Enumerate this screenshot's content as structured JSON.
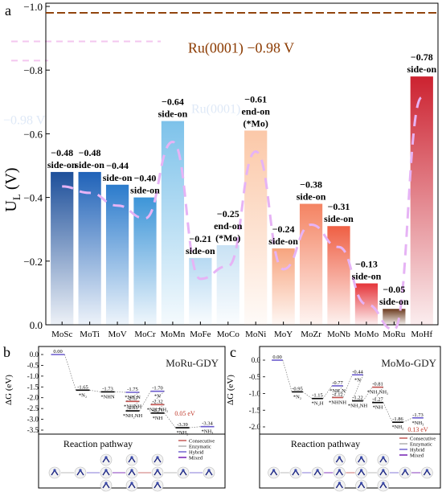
{
  "chart_data": [
    {
      "panel_label": "a",
      "type": "bar",
      "ylabel": "U",
      "ylabel_sub": "L",
      "ylabel_unit": " (V)",
      "ylim": [
        0,
        -1.0
      ],
      "yticks": [
        0.0,
        -0.2,
        -0.4,
        -0.6,
        -0.8,
        -1.0
      ],
      "ytick_labels": [
        "0.0",
        "−0.2",
        "−0.4",
        "−0.6",
        "−0.8",
        "−1.0"
      ],
      "reference": {
        "label": "Ru(0001)  −0.98 V",
        "value": -0.98,
        "color": "#8b3a00"
      },
      "ghost_texts": [
        "Ru(0001)",
        "−0.98 V"
      ],
      "categories": [
        "MoSc",
        "MoTi",
        "MoV",
        "MoCr",
        "MoMn",
        "MoFe",
        "MoCo",
        "MoNi",
        "MoY",
        "MoZr",
        "MoNb",
        "MoMo",
        "MoRu",
        "MoHf"
      ],
      "values": [
        -0.48,
        -0.48,
        -0.44,
        -0.4,
        -0.64,
        -0.21,
        -0.25,
        -0.61,
        -0.24,
        -0.38,
        -0.31,
        -0.13,
        -0.05,
        -0.78
      ],
      "value_labels": [
        "−0.48",
        "−0.48",
        "−0.44",
        "−0.40",
        "−0.64",
        "−0.21",
        "−0.25",
        "−0.61",
        "−0.24",
        "−0.38",
        "−0.31",
        "−0.13",
        "−0.05",
        "−0.78"
      ],
      "modes": [
        "side-on",
        "side-on",
        "side-on",
        "side-on",
        "side-on",
        "side-on",
        "end-on",
        "end-on",
        "side-on",
        "side-on",
        "side-on",
        "side-on",
        "side-on",
        "side-on"
      ],
      "mode_notes": [
        "",
        "",
        "",
        "",
        "",
        "",
        "(*Mo)",
        "(*Mo)",
        "",
        "",
        "",
        "",
        "",
        ""
      ],
      "bar_colors": [
        "#1d4f9a",
        "#1f62b8",
        "#2b7bcc",
        "#3d95d8",
        "#7dc2ea",
        "#b6d9f2",
        "#c9e2f4",
        "#fbc8a8",
        "#f7a47e",
        "#f48362",
        "#ef5f44",
        "#e5343a",
        "#6b3a1e",
        "#cc2230"
      ]
    },
    {
      "panel_label": "b",
      "type": "line",
      "title": "MoRu-GDY",
      "ylabel": "ΔG (eV)",
      "ylim": [
        0.0,
        -3.5
      ],
      "yticks": [
        0.0,
        -0.5,
        -1.0,
        -1.5,
        -2.0,
        -2.5,
        -3.0,
        -3.5
      ],
      "ytick_labels": [
        "0.0",
        "-0.5",
        "-1.0",
        "-1.5",
        "-2.0",
        "-2.5",
        "-3.0",
        "-3.5"
      ],
      "levels": [
        {
          "x": 0,
          "y": 0.0,
          "value_label": "0.00",
          "species": "",
          "color": "#6a5acd"
        },
        {
          "x": 1,
          "y": -1.65,
          "value_label": "-1.65",
          "species": "*N₂",
          "color": "#000000"
        },
        {
          "x": 2,
          "y": -1.73,
          "value_label": "-1.73",
          "species": "*NHN",
          "color": "#000000"
        },
        {
          "x": 3,
          "y": -1.75,
          "value_label": "-1.75",
          "species": "*NH₂N",
          "color": "#6a5acd"
        },
        {
          "x": 3,
          "y": -2.17,
          "value_label": "-2.17",
          "species": "*NHNH",
          "color": "#c0504d"
        },
        {
          "x": 3,
          "y": -2.61,
          "value_label": "-2.61",
          "species": "*NH₂NH",
          "color": "#000000"
        },
        {
          "x": 4,
          "y": -1.7,
          "value_label": "-1.70",
          "species": "*N",
          "color": "#6a5acd"
        },
        {
          "x": 4,
          "y": -2.32,
          "value_label": "-2.32",
          "species": "*NH₂NH₂",
          "color": "#c0504d"
        },
        {
          "x": 4,
          "y": -2.71,
          "value_label": "-2.71",
          "species": "*NH",
          "color": "#000000"
        },
        {
          "x": 5,
          "y": -3.39,
          "value_label": "-3.39",
          "species": "*NH₂",
          "color": "#000000"
        },
        {
          "x": 6,
          "y": -3.34,
          "value_label": "-3.34",
          "species": "*NH₃",
          "color": "#6a5acd"
        }
      ],
      "annotation": "0.05 eV",
      "pathway_label": "Reaction pathway",
      "legend": [
        "Consecutive",
        "Enzymatic",
        "Hybrid",
        "Mixed"
      ],
      "legend_colors": [
        "#c0504d",
        "#aaaaaa",
        "#6a5acd",
        "#6a0dad"
      ]
    },
    {
      "panel_label": "c",
      "type": "line",
      "title": "MoMo-GDY",
      "ylabel": "ΔG (eV)",
      "ylim": [
        0.0,
        -2.0
      ],
      "yticks": [
        0.0,
        -0.5,
        -1.0,
        -1.5,
        -2.0
      ],
      "ytick_labels": [
        "0.0",
        "-0.5",
        "-1.0",
        "-1.5",
        "-2.0"
      ],
      "levels": [
        {
          "x": 0,
          "y": 0.0,
          "value_label": "0.00",
          "species": "",
          "color": "#6a5acd"
        },
        {
          "x": 1,
          "y": -0.95,
          "value_label": "-0.95",
          "species": "*N₂",
          "color": "#000000"
        },
        {
          "x": 2,
          "y": -1.15,
          "value_label": "-1.15",
          "species": "*N₂H",
          "color": "#000000"
        },
        {
          "x": 3,
          "y": -0.77,
          "value_label": "-0.77",
          "species": "*NH₂N",
          "color": "#6a5acd"
        },
        {
          "x": 3,
          "y": -1.12,
          "value_label": "-1.12",
          "species": "*NHNH",
          "color": "#c0504d"
        },
        {
          "x": 4,
          "y": -0.44,
          "value_label": "-0.44",
          "species": "*N",
          "color": "#6a5acd"
        },
        {
          "x": 4,
          "y": -1.22,
          "value_label": "-1.22",
          "species": "*NH₂NH",
          "color": "#000000"
        },
        {
          "x": 5,
          "y": -0.81,
          "value_label": "-0.81",
          "species": "*NH₂NH₂",
          "color": "#c0504d"
        },
        {
          "x": 5,
          "y": -1.27,
          "value_label": "-1.27",
          "species": "*NH",
          "color": "#000000"
        },
        {
          "x": 6,
          "y": -1.86,
          "value_label": "-1.86",
          "species": "*NH₂",
          "color": "#000000"
        },
        {
          "x": 7,
          "y": -1.73,
          "value_label": "-1.73",
          "species": "*NH₃",
          "color": "#6a5acd"
        }
      ],
      "annotation": "0.13 eV",
      "pathway_label": "Reaction pathway",
      "legend": [
        "Consecutive",
        "Enzymatic",
        "Hybrid",
        "Mixed"
      ],
      "legend_colors": [
        "#c0504d",
        "#aaaaaa",
        "#6a5acd",
        "#6a0dad"
      ]
    }
  ]
}
